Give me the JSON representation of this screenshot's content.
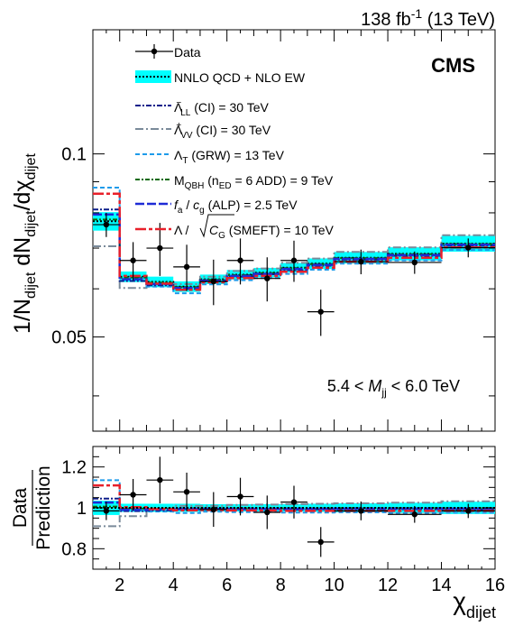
{
  "header": {
    "lumi": "138 fb⁻¹ (13 TeV)",
    "experiment": "CMS"
  },
  "axes": {
    "ylabel": "1/N_dijet dN_dijet/dχ_dijet",
    "xlabel": "χ_dijet",
    "ratio_ylabel_top": "Data",
    "ratio_ylabel_bottom": "Prediction",
    "region_label": "5.4 < M_jj < 6.0 TeV",
    "main_ytick_labels": [
      "0.05",
      "0.1"
    ],
    "ratio_ytick_labels": [
      "0.8",
      "1",
      "1.2"
    ],
    "xtick_labels": [
      "2",
      "4",
      "6",
      "8",
      "10",
      "12",
      "14",
      "16"
    ]
  },
  "legend": [
    {
      "key": "data",
      "label": "Data",
      "color": "#000000",
      "style": "marker"
    },
    {
      "key": "sm",
      "label": "NNLO QCD + NLO EW",
      "color": "#00ffff",
      "style": "band"
    },
    {
      "key": "ll",
      "label": "Λ⁻_LL (CI) = 30 TeV",
      "color": "#0b1f8a",
      "style": "dashdot"
    },
    {
      "key": "vv",
      "label": "Λ⁺_VV (CI) = 30 TeV",
      "color": "#7a8a9a",
      "style": "dashdot"
    },
    {
      "key": "grw",
      "label": "Λ_T (GRW) = 13 TeV",
      "color": "#1e9bea",
      "style": "dash"
    },
    {
      "key": "qbh",
      "label": "M_QBH (n_ED = 6 ADD) = 9 TeV",
      "color": "#0a6a0a",
      "style": "dashdot"
    },
    {
      "key": "alp",
      "label": "f_a / c_g (ALP) = 2.5 TeV",
      "color": "#1e2bd6",
      "style": "longdash"
    },
    {
      "key": "smeft",
      "label": "Λ / √C_G (SMEFT) = 10 TeV",
      "color": "#e8202a",
      "style": "longdash"
    }
  ],
  "chart_data": {
    "type": "line",
    "title": "",
    "xlabel": "χ_dijet",
    "ylabel": "1/N_dijet dN_dijet/dχ_dijet",
    "xlim": [
      1,
      16
    ],
    "ylim": [
      0.035,
      0.16
    ],
    "yscale": "log",
    "bin_edges": [
      1,
      2,
      3,
      4,
      5,
      6,
      7,
      8,
      9,
      10,
      12,
      14,
      16
    ],
    "data": {
      "x": [
        1.5,
        2.5,
        3.5,
        4.5,
        5.5,
        6.5,
        7.5,
        8.5,
        9.5,
        11,
        13,
        15
      ],
      "y": [
        0.0765,
        0.0668,
        0.07,
        0.0652,
        0.0617,
        0.0668,
        0.0624,
        0.0668,
        0.055,
        0.0665,
        0.0663,
        0.0701
      ],
      "yerr": [
        0.0035,
        0.0048,
        0.007,
        0.0057,
        0.0053,
        0.0058,
        0.0052,
        0.0052,
        0.0048,
        0.0031,
        0.0028,
        0.0025
      ]
    },
    "series": [
      {
        "key": "sm",
        "name": "NNLO QCD + NLO EW",
        "values": [
          0.0775,
          0.0628,
          0.0616,
          0.0605,
          0.0622,
          0.0633,
          0.0638,
          0.065,
          0.066,
          0.0675,
          0.0685,
          0.0712
        ],
        "band_rel": [
          0.035,
          0.02,
          0.02,
          0.02,
          0.018,
          0.018,
          0.018,
          0.018,
          0.02,
          0.022,
          0.025,
          0.03
        ]
      },
      {
        "key": "ll",
        "name": "Λ⁻_LL (CI) = 30 TeV",
        "values": [
          0.081,
          0.0618,
          0.0608,
          0.06,
          0.0617,
          0.0628,
          0.0634,
          0.0644,
          0.0655,
          0.067,
          0.068,
          0.0706
        ]
      },
      {
        "key": "vv",
        "name": "Λ⁺_VV (CI) = 30 TeV",
        "values": [
          0.0705,
          0.0602,
          0.0612,
          0.0611,
          0.0628,
          0.0642,
          0.0648,
          0.0662,
          0.0673,
          0.069,
          0.0702,
          0.0735
        ]
      },
      {
        "key": "grw",
        "name": "Λ_T (GRW) = 13 TeV",
        "values": [
          0.088,
          0.0625,
          0.0605,
          0.059,
          0.061,
          0.062,
          0.0625,
          0.0635,
          0.0645,
          0.066,
          0.0668,
          0.0695
        ]
      },
      {
        "key": "qbh",
        "name": "M_QBH (n_ED = 6 ADD) = 9 TeV",
        "values": [
          0.078,
          0.0626,
          0.0614,
          0.0604,
          0.0621,
          0.0632,
          0.0637,
          0.0649,
          0.0659,
          0.0674,
          0.0684,
          0.0711
        ]
      },
      {
        "key": "alp",
        "name": "f_a / c_g (ALP) = 2.5 TeV",
        "values": [
          0.0795,
          0.0622,
          0.0611,
          0.0602,
          0.0619,
          0.063,
          0.0635,
          0.0647,
          0.0657,
          0.0672,
          0.0682,
          0.0709
        ]
      },
      {
        "key": "smeft",
        "name": "Λ / √C_G (SMEFT) = 10 TeV",
        "values": [
          0.086,
          0.063,
          0.0612,
          0.0598,
          0.0615,
          0.0625,
          0.063,
          0.064,
          0.065,
          0.0665,
          0.0675,
          0.0702
        ]
      }
    ],
    "ratio": {
      "ylabel": "Data / Prediction",
      "ylim": [
        0.7,
        1.3
      ],
      "data_values": [
        0.985,
        1.064,
        1.136,
        1.078,
        0.992,
        1.055,
        0.978,
        1.028,
        0.833,
        0.985,
        0.968,
        0.985
      ],
      "data_errors": [
        0.045,
        0.077,
        0.114,
        0.094,
        0.085,
        0.092,
        0.082,
        0.08,
        0.073,
        0.046,
        0.041,
        0.035
      ],
      "band_rel": [
        0.035,
        0.02,
        0.02,
        0.02,
        0.018,
        0.018,
        0.018,
        0.018,
        0.02,
        0.022,
        0.025,
        0.03
      ],
      "series": [
        {
          "key": "ll",
          "values": [
            1.045,
            0.984,
            0.987,
            0.992,
            0.992,
            0.992,
            0.994,
            0.991,
            0.992,
            0.993,
            0.993,
            0.992
          ]
        },
        {
          "key": "vv",
          "values": [
            0.91,
            0.959,
            0.994,
            1.01,
            1.01,
            1.014,
            1.016,
            1.018,
            1.02,
            1.022,
            1.025,
            1.032
          ]
        },
        {
          "key": "grw",
          "values": [
            1.135,
            0.995,
            0.982,
            0.975,
            0.981,
            0.979,
            0.98,
            0.977,
            0.977,
            0.978,
            0.975,
            0.976
          ]
        },
        {
          "key": "qbh",
          "values": [
            1.006,
            0.997,
            0.997,
            0.998,
            0.998,
            0.998,
            0.998,
            0.998,
            0.998,
            0.999,
            0.999,
            0.999
          ]
        },
        {
          "key": "alp",
          "values": [
            1.026,
            0.99,
            0.992,
            0.995,
            0.995,
            0.995,
            0.995,
            0.995,
            0.995,
            0.996,
            0.996,
            0.996
          ]
        },
        {
          "key": "smeft",
          "values": [
            1.11,
            1.003,
            0.994,
            0.988,
            0.989,
            0.987,
            0.987,
            0.985,
            0.985,
            0.985,
            0.985,
            0.986
          ]
        }
      ]
    },
    "legend_position": "top-left",
    "grid": false
  }
}
